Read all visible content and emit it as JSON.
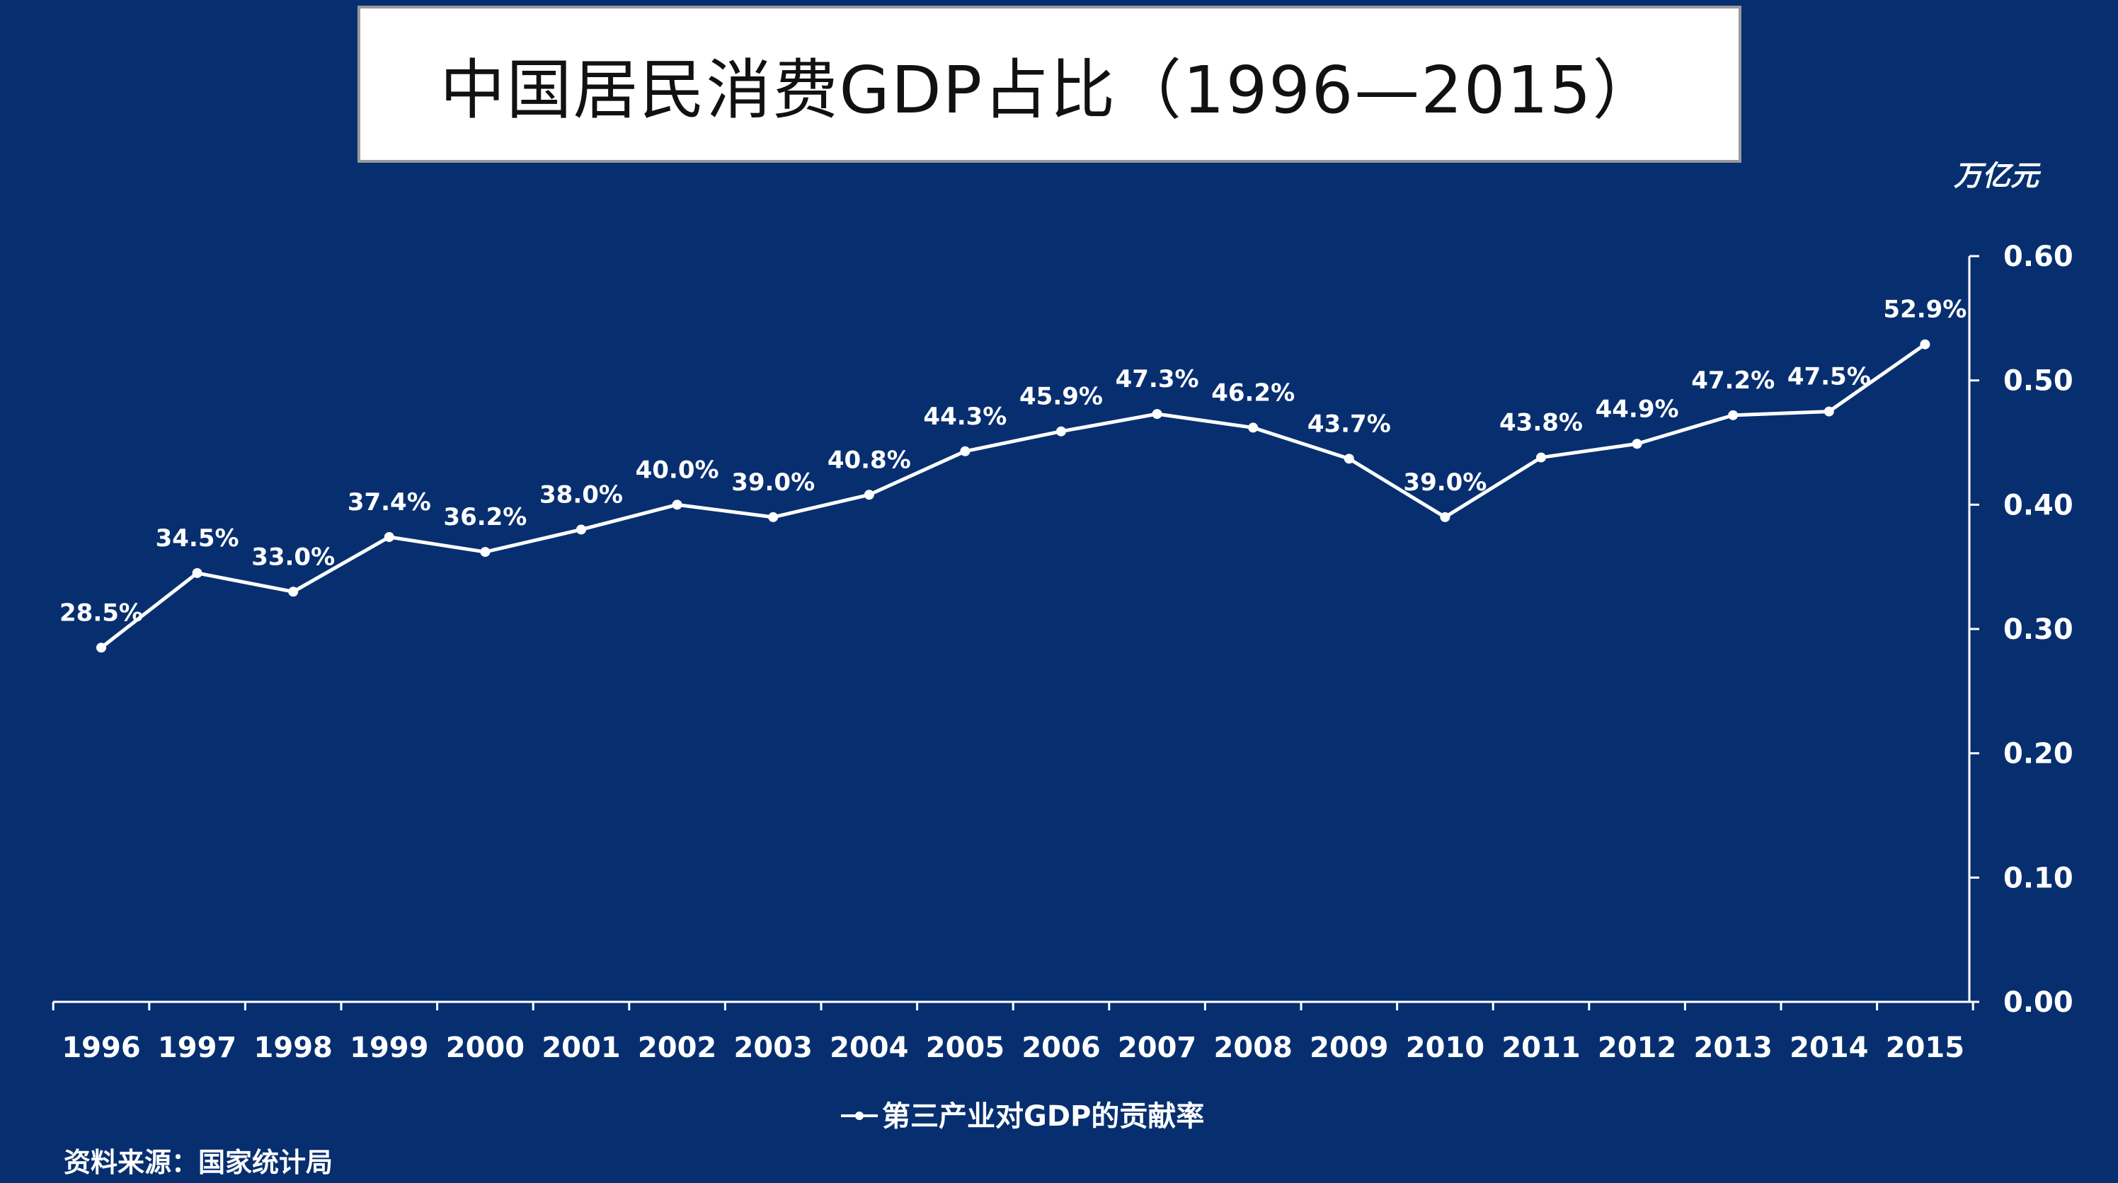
{
  "title": "中国居民消费GDP占比（1996—2015）",
  "unit_label": "万亿元",
  "source": "资料来源：国家统计局",
  "colors": {
    "background": "#072f70",
    "line": "#ffffff",
    "title_bg": "#ffffff"
  },
  "chart_data": {
    "type": "line",
    "title": "中国居民消费GDP占比（1996—2015）",
    "categories": [
      "1996",
      "1997",
      "1998",
      "1999",
      "2000",
      "2001",
      "2002",
      "2003",
      "2004",
      "2005",
      "2006",
      "2007",
      "2008",
      "2009",
      "2010",
      "2011",
      "2012",
      "2013",
      "2014",
      "2015"
    ],
    "series": [
      {
        "name": "第三产业对GDP的贡献率",
        "values": [
          0.285,
          0.345,
          0.33,
          0.374,
          0.362,
          0.38,
          0.4,
          0.39,
          0.408,
          0.443,
          0.459,
          0.473,
          0.462,
          0.437,
          0.39,
          0.438,
          0.449,
          0.472,
          0.475,
          0.529
        ],
        "labels": [
          "28.5%",
          "34.5%",
          "33.0%",
          "37.4%",
          "36.2%",
          "38.0%",
          "40.0%",
          "39.0%",
          "40.8%",
          "44.3%",
          "45.9%",
          "47.3%",
          "46.2%",
          "43.7%",
          "39.0%",
          "43.8%",
          "44.9%",
          "47.2%",
          "47.5%",
          "52.9%"
        ]
      }
    ],
    "ylim": [
      0,
      0.6
    ],
    "yticks": [
      "0.00",
      "0.10",
      "0.20",
      "0.30",
      "0.40",
      "0.50",
      "0.60"
    ],
    "ylabel": "万亿元",
    "legend": "bottom-center"
  }
}
